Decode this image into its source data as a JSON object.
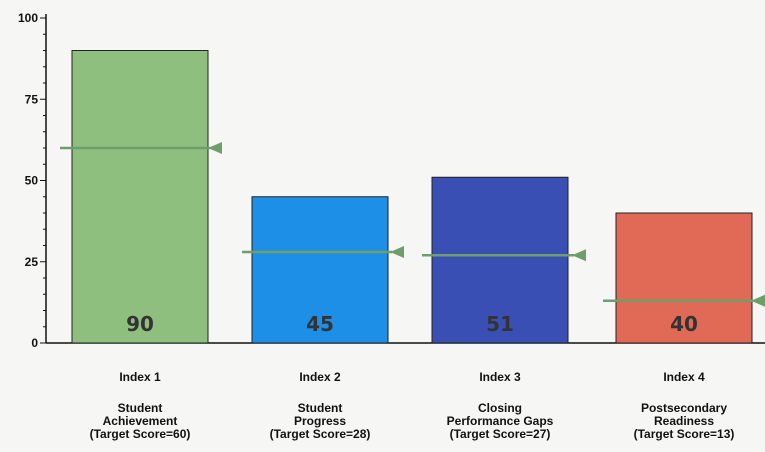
{
  "chart_data": {
    "type": "bar",
    "categories": [
      {
        "index": "Index 1",
        "name": [
          "Student",
          "Achievement"
        ],
        "target_text": "(Target Score=60)"
      },
      {
        "index": "Index 2",
        "name": [
          "Student",
          "Progress"
        ],
        "target_text": "(Target Score=28)"
      },
      {
        "index": "Index 3",
        "name": [
          "Closing",
          "Performance Gaps"
        ],
        "target_text": "(Target Score=27)"
      },
      {
        "index": "Index 4",
        "name": [
          "Postsecondary",
          "Readiness"
        ],
        "target_text": "(Target Score=13)"
      }
    ],
    "values": [
      90,
      45,
      51,
      40
    ],
    "value_labels": [
      "90",
      "45",
      "51",
      "40"
    ],
    "targets": [
      60,
      28,
      27,
      13
    ],
    "bar_colors": [
      "#8fbf7f",
      "#1d8fe6",
      "#3a4fb3",
      "#e06a55"
    ],
    "target_line_color": "#6e9e6a",
    "ylim": [
      0,
      100
    ],
    "yticks": [
      0,
      25,
      50,
      75,
      100
    ],
    "title": "",
    "xlabel": "",
    "ylabel": "",
    "grid": false,
    "legend": "none"
  }
}
